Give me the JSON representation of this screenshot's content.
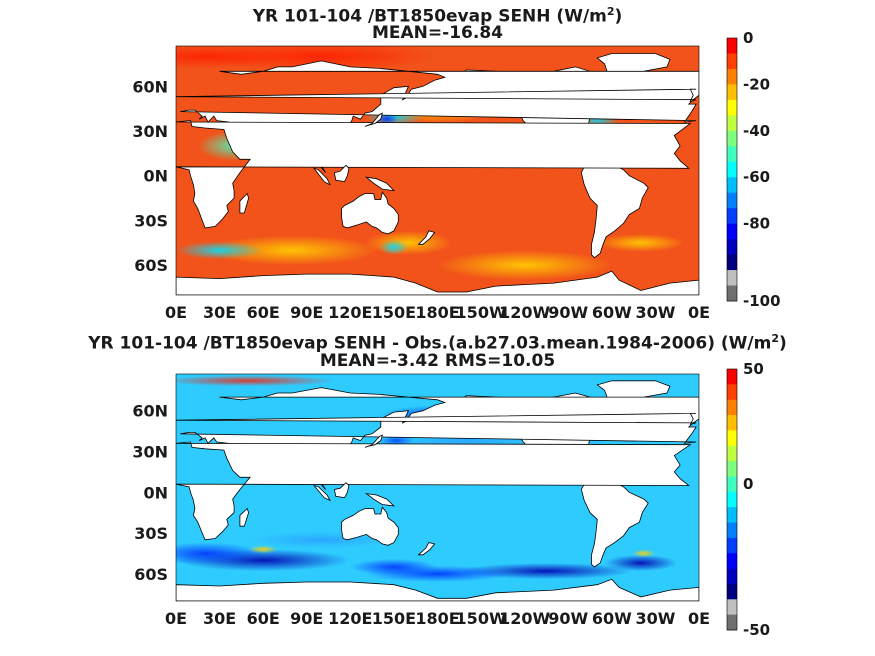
{
  "chart_data": [
    {
      "type": "heatmap",
      "title_prefix": "YR 101-104 /BT1850evap  SENH (W/m",
      "title_sup": "2",
      "title_suffix": ")",
      "subtitle": "MEAN=-16.84",
      "mean": -16.84,
      "x_ticks": [
        "0E",
        "30E",
        "60E",
        "90E",
        "120E",
        "150E",
        "180E",
        "150W",
        "120W",
        "90W",
        "60W",
        "30W",
        "0E"
      ],
      "y_ticks": [
        "60N",
        "30N",
        "0N",
        "30S",
        "60S"
      ],
      "y_tick_values": [
        60,
        30,
        0,
        -30,
        -60
      ],
      "xlim": [
        0,
        360
      ],
      "ylim": [
        -80,
        87
      ],
      "colorbar": {
        "min": -100,
        "max": 0,
        "ticks": [
          "0",
          "-20",
          "-40",
          "-60",
          "-80",
          "-100"
        ],
        "tick_values": [
          0,
          -20,
          -40,
          -60,
          -80,
          -100
        ]
      },
      "colors": [
        "#ff0000",
        "#ff4000",
        "#ff7f00",
        "#ffbf00",
        "#ffff00",
        "#bfff3f",
        "#7fff7f",
        "#3fffbf",
        "#00ffff",
        "#00bfff",
        "#007fff",
        "#003fff",
        "#0000ff",
        "#0000bf",
        "#00007f",
        "#bfbfbf",
        "#6f6f6f"
      ]
    },
    {
      "type": "heatmap",
      "title_prefix": "YR 101-104 /BT1850evap SENH - Obs.(a.b27.03.mean.1984-2006) (W/m",
      "title_sup": "2",
      "title_suffix": ")",
      "subtitle": "MEAN=-3.42 RMS=10.05",
      "mean": -3.42,
      "rms": 10.05,
      "x_ticks": [
        "0E",
        "30E",
        "60E",
        "90E",
        "120E",
        "150E",
        "180E",
        "150W",
        "120W",
        "90W",
        "60W",
        "30W",
        "0E"
      ],
      "y_ticks": [
        "60N",
        "30N",
        "0N",
        "30S",
        "60S"
      ],
      "y_tick_values": [
        60,
        30,
        0,
        -30,
        -60
      ],
      "xlim": [
        0,
        360
      ],
      "ylim": [
        -80,
        87
      ],
      "colorbar": {
        "min": -50,
        "max": 50,
        "ticks": [
          "50",
          "0",
          "-50"
        ],
        "tick_values": [
          50,
          0,
          -50
        ]
      },
      "colors": [
        "#ff0000",
        "#ff4000",
        "#ff7f00",
        "#ffbf00",
        "#ffff00",
        "#bfff3f",
        "#7fff7f",
        "#3fffbf",
        "#00ffff",
        "#00bfff",
        "#007fff",
        "#003fff",
        "#0000ff",
        "#0000bf",
        "#00007f",
        "#bfbfbf",
        "#6f6f6f"
      ]
    }
  ]
}
